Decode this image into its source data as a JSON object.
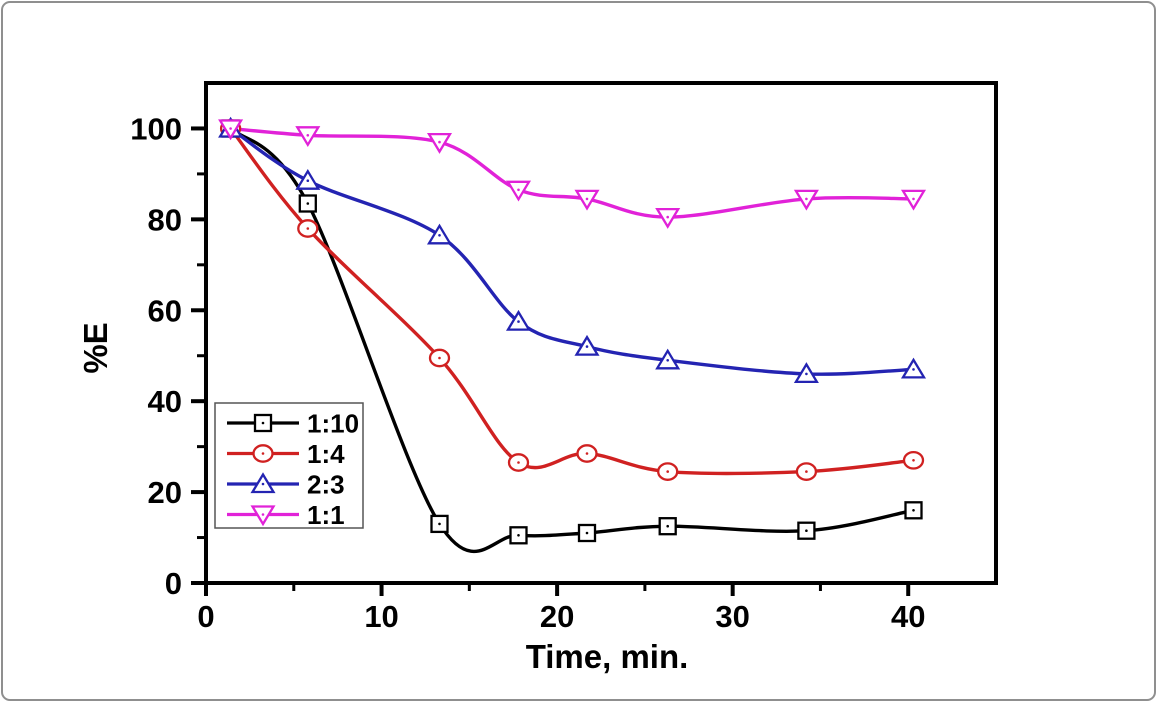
{
  "figure": {
    "background_color": "#ffffff",
    "border_color": "#8f8f8f",
    "axis_color": "#000000"
  },
  "chart_data": {
    "type": "line",
    "title": "",
    "xlabel": "Time, min.",
    "ylabel": "%E",
    "xlim": [
      0,
      45
    ],
    "ylim": [
      0,
      110
    ],
    "x_major_ticks": [
      0,
      10,
      20,
      30,
      40
    ],
    "x_minor_ticks": [
      5,
      15,
      25,
      35
    ],
    "y_major_ticks": [
      0,
      20,
      40,
      60,
      80,
      100
    ],
    "y_minor_ticks": [
      10,
      30,
      50,
      70,
      90
    ],
    "grid": false,
    "legend_position": "lower-left",
    "x": [
      1.4,
      5.8,
      13.3,
      17.8,
      21.7,
      26.3,
      34.2,
      40.3
    ],
    "series": [
      {
        "name": "1:10",
        "color": "#000000",
        "marker": "square",
        "values": [
          100,
          83.5,
          13,
          10.5,
          11,
          12.5,
          11.5,
          16
        ]
      },
      {
        "name": "1:4",
        "color": "#d02121",
        "marker": "circle",
        "values": [
          100,
          78,
          49.5,
          26.5,
          28.5,
          24.5,
          24.5,
          27
        ]
      },
      {
        "name": "2:3",
        "color": "#2424b2",
        "marker": "triangle-up",
        "values": [
          100,
          88.5,
          76.5,
          57.5,
          52,
          49,
          46,
          47
        ]
      },
      {
        "name": "1:1",
        "color": "#e122d8",
        "marker": "triangle-down",
        "values": [
          100,
          98.5,
          97,
          86.5,
          84.5,
          80.5,
          84.5,
          84.5
        ]
      }
    ]
  }
}
